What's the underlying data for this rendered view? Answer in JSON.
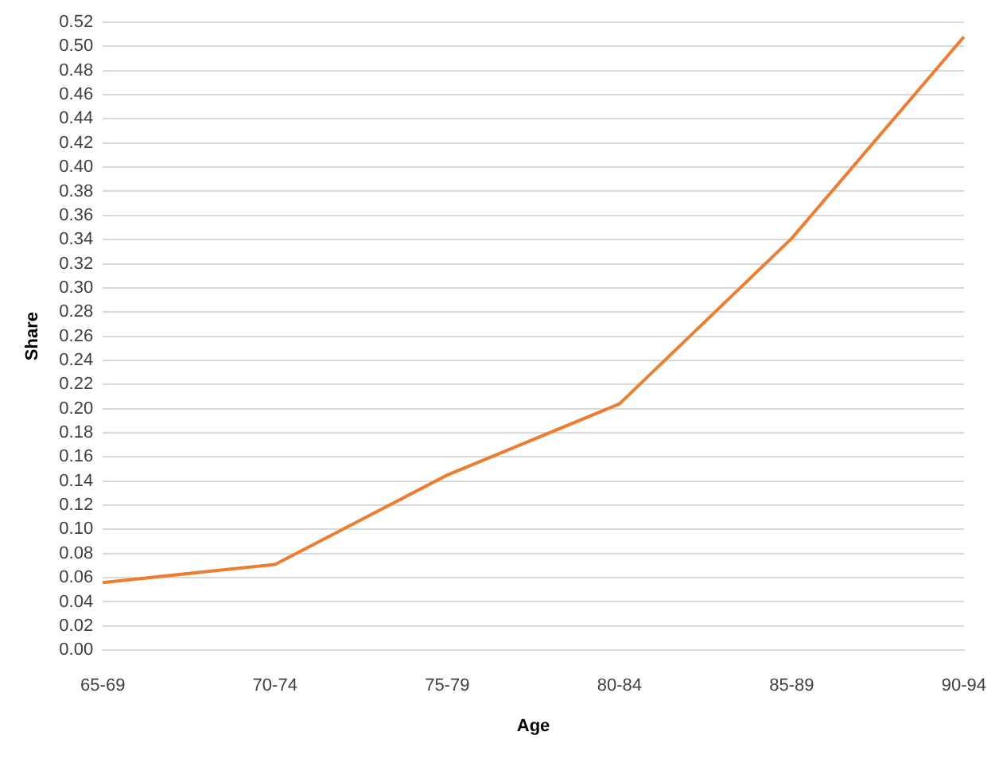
{
  "chart_data": {
    "type": "line",
    "xlabel": "Age",
    "ylabel": "Share",
    "categories": [
      "65-69",
      "70-74",
      "75-79",
      "80-84",
      "85-89",
      "90-94"
    ],
    "series": [
      {
        "color": "#ed7d31",
        "values": [
          0.056,
          0.071,
          0.145,
          0.204,
          0.341,
          0.508
        ]
      }
    ],
    "ylim": [
      0,
      0.52
    ],
    "yticks": [
      {
        "value": 0,
        "label": "0.00"
      },
      {
        "value": 0.02,
        "label": "0.02"
      },
      {
        "value": 0.04,
        "label": "0.04"
      },
      {
        "value": 0.06,
        "label": "0.06"
      },
      {
        "value": 0.08,
        "label": "0.08"
      },
      {
        "value": 0.1,
        "label": "0.10"
      },
      {
        "value": 0.12,
        "label": "0.12"
      },
      {
        "value": 0.14,
        "label": "0.14"
      },
      {
        "value": 0.16,
        "label": "0.16"
      },
      {
        "value": 0.18,
        "label": "0.18"
      },
      {
        "value": 0.2,
        "label": "0.20"
      },
      {
        "value": 0.22,
        "label": "0.22"
      },
      {
        "value": 0.24,
        "label": "0.24"
      },
      {
        "value": 0.26,
        "label": "0.26"
      },
      {
        "value": 0.28,
        "label": "0.28"
      },
      {
        "value": 0.3,
        "label": "0.30"
      },
      {
        "value": 0.32,
        "label": "0.32"
      },
      {
        "value": 0.34,
        "label": "0.34"
      },
      {
        "value": 0.36,
        "label": "0.36"
      },
      {
        "value": 0.38,
        "label": "0.38"
      },
      {
        "value": 0.4,
        "label": "0.40"
      },
      {
        "value": 0.42,
        "label": "0.42"
      },
      {
        "value": 0.44,
        "label": "0.44"
      },
      {
        "value": 0.46,
        "label": "0.46"
      },
      {
        "value": 0.48,
        "label": "0.48"
      },
      {
        "value": 0.5,
        "label": "0.50"
      },
      {
        "value": 0.52,
        "label": "0.52"
      }
    ],
    "grid": "y",
    "legend": false,
    "marker": "none",
    "line_style": "solid"
  }
}
